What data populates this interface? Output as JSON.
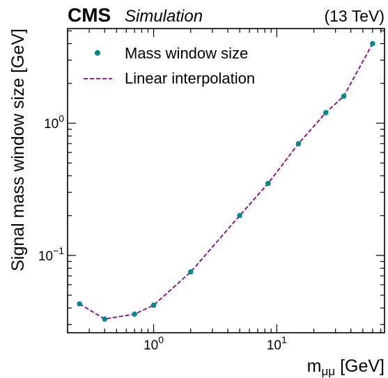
{
  "header": {
    "experiment": "CMS",
    "status": "Simulation",
    "energy": "(13 TeV)"
  },
  "colors": {
    "points": "#008b8b",
    "line": "#8b008b"
  },
  "chart_data": {
    "type": "scatter",
    "xlabel_main": "m",
    "xlabel_sub": "μμ",
    "xlabel_unit": "[GeV]",
    "ylabel": "Signal mass window size [GeV]",
    "xscale": "log",
    "yscale": "log",
    "xlim": [
      0.2,
      75
    ],
    "ylim": [
      0.026,
      5.2
    ],
    "x_ticks": [
      {
        "value": 1,
        "base": "10",
        "exp": "0"
      },
      {
        "value": 10,
        "base": "10",
        "exp": "1"
      }
    ],
    "y_ticks": [
      {
        "value": 0.1,
        "base": "10",
        "exp": "−1"
      },
      {
        "value": 1,
        "base": "10",
        "exp": "0"
      }
    ],
    "legend_position": "top-left",
    "series": [
      {
        "name": "Mass window size",
        "kind": "points",
        "x": [
          0.25,
          0.4,
          0.7,
          1.0,
          2.0,
          5.0,
          8.5,
          15.0,
          25.0,
          35.0,
          60.0
        ],
        "y": [
          0.043,
          0.033,
          0.036,
          0.042,
          0.075,
          0.2,
          0.35,
          0.7,
          1.2,
          1.6,
          4.0
        ]
      },
      {
        "name": "Linear interpolation",
        "kind": "dashed-line",
        "x": [
          0.25,
          0.4,
          0.7,
          1.0,
          2.0,
          5.0,
          8.5,
          15.0,
          25.0,
          35.0,
          60.0
        ],
        "y": [
          0.043,
          0.033,
          0.036,
          0.042,
          0.075,
          0.2,
          0.35,
          0.7,
          1.2,
          1.6,
          4.0
        ]
      }
    ]
  }
}
